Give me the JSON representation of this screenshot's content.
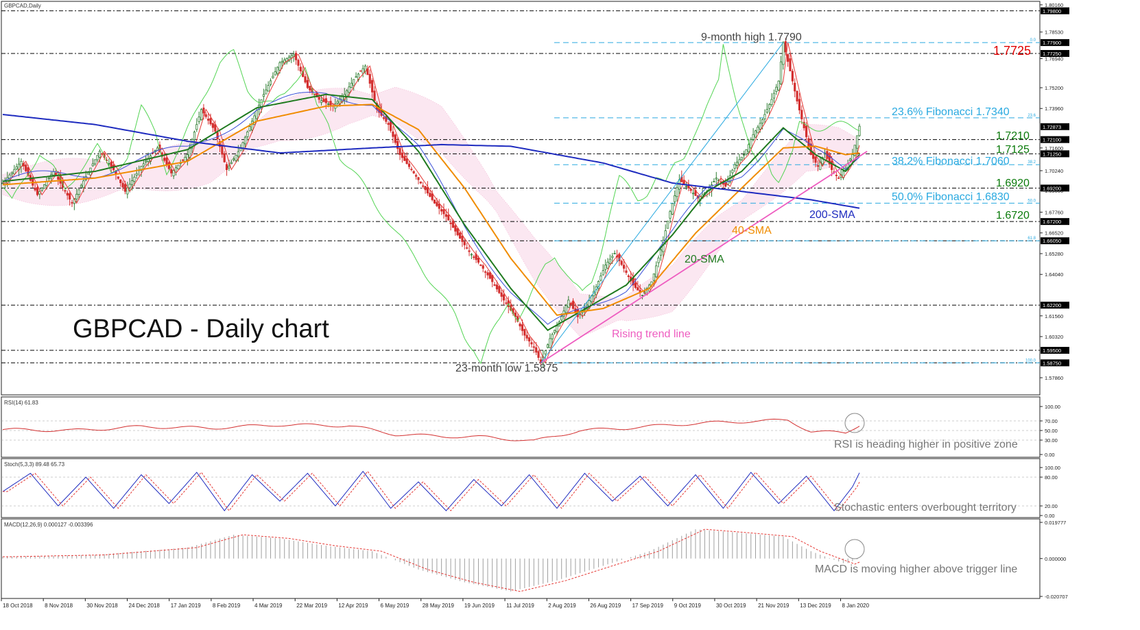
{
  "chart_data": {
    "type": "candlestick",
    "symbol_label": "GBPCAD,Daily",
    "title": "GBPCAD - Daily chart",
    "price_axis": {
      "ylim": [
        1.57,
        1.802
      ],
      "ticks": [
        "1.80160",
        "1.78530",
        "1.76940",
        "1.75200",
        "1.73960",
        "1.71600",
        "1.70240",
        "1.69060",
        "1.67760",
        "1.66520",
        "1.65280",
        "1.64040",
        "1.61560",
        "1.60320",
        "1.57860"
      ],
      "tick_values": [
        1.8016,
        1.7853,
        1.7694,
        1.752,
        1.7396,
        1.716,
        1.7024,
        1.6906,
        1.6776,
        1.6652,
        1.6528,
        1.6404,
        1.6156,
        1.6032,
        1.5786
      ],
      "labels": [
        {
          "text": "1.79800",
          "value": 1.798
        },
        {
          "text": "1.77900",
          "value": 1.779
        },
        {
          "text": "1.77250",
          "value": 1.7725
        },
        {
          "text": "1.72873",
          "value": 1.72873
        },
        {
          "text": "1.72100",
          "value": 1.721
        },
        {
          "text": "1.71250",
          "value": 1.7125
        },
        {
          "text": "1.69200",
          "value": 1.692
        },
        {
          "text": "1.67200",
          "value": 1.672
        },
        {
          "text": "1.66050",
          "value": 1.6605
        },
        {
          "text": "1.62200",
          "value": 1.622
        },
        {
          "text": "1.59500",
          "value": 1.595
        },
        {
          "text": "1.58750",
          "value": 1.5875
        }
      ]
    },
    "x_axis_labels": [
      "18 Oct 2018",
      "8 Nov 2018",
      "30 Nov 2018",
      "24 Dec 2018",
      "17 Jan 2019",
      "8 Feb 2019",
      "4 Mar 2019",
      "22 Mar 2019",
      "12 Apr 2019",
      "6 May 2019",
      "28 May 2019",
      "19 Jun 2019",
      "11 Jul 2019",
      "2 Aug 2019",
      "26 Aug 2019",
      "17 Sep 2019",
      "9 Oct 2019",
      "30 Oct 2019",
      "21 Nov 2019",
      "13 Dec 2019",
      "8 Jan 2020"
    ],
    "horizontal_levels": [
      1.798,
      1.7725,
      1.721,
      1.7125,
      1.692,
      1.672,
      1.6605,
      1.622,
      1.595,
      1.5875
    ],
    "fibonacci": [
      {
        "ratio": "0.0",
        "value": 1.779
      },
      {
        "ratio": "23.6",
        "value": 1.734
      },
      {
        "ratio": "38.2",
        "value": 1.706
      },
      {
        "ratio": "50.0",
        "value": 1.683
      },
      {
        "ratio": "61.8",
        "value": 1.6605
      },
      {
        "ratio": "100.0",
        "value": 1.5875
      }
    ],
    "annotations": {
      "high": "9-month high 1.7790",
      "low": "23-month low 1.5875",
      "lvl_1_7725": "1.7725",
      "fib_236": "23.6% Fibonacci 1.7340",
      "lvl_1_7210": "1.7210",
      "lvl_1_7125": "1.7125",
      "fib_382": "38.2% Fibonacci 1.7060",
      "lvl_1_6920": "1.6920",
      "fib_500": "50.0% Fibonacci 1.6830",
      "sma200": "200-SMA",
      "lvl_1_6720": "1.6720",
      "sma40": "40-SMA",
      "sma20": "20-SMA",
      "trend": "Rising trend line"
    },
    "fib_ratio_labels": [
      "0.0",
      "23.6",
      "38.2",
      "50.0",
      "61.8",
      "100.0"
    ],
    "price_path": [
      [
        0,
        1.695
      ],
      [
        8,
        1.708
      ],
      [
        15,
        1.688
      ],
      [
        22,
        1.702
      ],
      [
        30,
        1.683
      ],
      [
        36,
        1.699
      ],
      [
        42,
        1.714
      ],
      [
        48,
        1.703
      ],
      [
        53,
        1.69
      ],
      [
        60,
        1.705
      ],
      [
        67,
        1.716
      ],
      [
        73,
        1.701
      ],
      [
        80,
        1.712
      ],
      [
        86,
        1.739
      ],
      [
        92,
        1.726
      ],
      [
        97,
        1.703
      ],
      [
        103,
        1.716
      ],
      [
        108,
        1.732
      ],
      [
        113,
        1.748
      ],
      [
        120,
        1.767
      ],
      [
        126,
        1.772
      ],
      [
        132,
        1.752
      ],
      [
        137,
        1.745
      ],
      [
        143,
        1.741
      ],
      [
        148,
        1.748
      ],
      [
        152,
        1.757
      ],
      [
        157,
        1.765
      ],
      [
        162,
        1.739
      ],
      [
        167,
        1.73
      ],
      [
        172,
        1.712
      ],
      [
        177,
        1.703
      ],
      [
        182,
        1.693
      ],
      [
        187,
        1.683
      ],
      [
        192,
        1.675
      ],
      [
        197,
        1.664
      ],
      [
        202,
        1.654
      ],
      [
        207,
        1.646
      ],
      [
        212,
        1.636
      ],
      [
        217,
        1.625
      ],
      [
        222,
        1.615
      ],
      [
        226,
        1.604
      ],
      [
        230,
        1.597
      ],
      [
        233,
        1.5875
      ],
      [
        237,
        1.602
      ],
      [
        241,
        1.612
      ],
      [
        245,
        1.625
      ],
      [
        249,
        1.615
      ],
      [
        253,
        1.622
      ],
      [
        257,
        1.633
      ],
      [
        261,
        1.646
      ],
      [
        265,
        1.653
      ],
      [
        269,
        1.644
      ],
      [
        273,
        1.634
      ],
      [
        277,
        1.628
      ],
      [
        281,
        1.636
      ],
      [
        285,
        1.655
      ],
      [
        289,
        1.678
      ],
      [
        293,
        1.697
      ],
      [
        297,
        1.692
      ],
      [
        301,
        1.686
      ],
      [
        305,
        1.69
      ],
      [
        309,
        1.698
      ],
      [
        313,
        1.693
      ],
      [
        317,
        1.706
      ],
      [
        321,
        1.712
      ],
      [
        325,
        1.724
      ],
      [
        329,
        1.733
      ],
      [
        333,
        1.745
      ],
      [
        336,
        1.756
      ],
      [
        338,
        1.779
      ],
      [
        341,
        1.762
      ],
      [
        344,
        1.744
      ],
      [
        347,
        1.728
      ],
      [
        350,
        1.712
      ],
      [
        353,
        1.705
      ],
      [
        356,
        1.713
      ],
      [
        359,
        1.703
      ],
      [
        362,
        1.698
      ],
      [
        365,
        1.704
      ],
      [
        368,
        1.712
      ],
      [
        371,
        1.729
      ]
    ],
    "sma20_path": [
      [
        0,
        1.696
      ],
      [
        40,
        1.702
      ],
      [
        80,
        1.715
      ],
      [
        110,
        1.74
      ],
      [
        140,
        1.748
      ],
      [
        160,
        1.745
      ],
      [
        180,
        1.714
      ],
      [
        200,
        1.67
      ],
      [
        220,
        1.632
      ],
      [
        236,
        1.607
      ],
      [
        250,
        1.618
      ],
      [
        270,
        1.634
      ],
      [
        290,
        1.664
      ],
      [
        305,
        1.69
      ],
      [
        320,
        1.702
      ],
      [
        338,
        1.728
      ],
      [
        352,
        1.712
      ],
      [
        365,
        1.702
      ],
      [
        371,
        1.712
      ]
    ],
    "sma40_path": [
      [
        0,
        1.694
      ],
      [
        40,
        1.698
      ],
      [
        80,
        1.708
      ],
      [
        110,
        1.732
      ],
      [
        140,
        1.741
      ],
      [
        160,
        1.742
      ],
      [
        180,
        1.727
      ],
      [
        200,
        1.692
      ],
      [
        220,
        1.65
      ],
      [
        240,
        1.616
      ],
      [
        260,
        1.62
      ],
      [
        280,
        1.632
      ],
      [
        300,
        1.665
      ],
      [
        320,
        1.692
      ],
      [
        338,
        1.716
      ],
      [
        352,
        1.717
      ],
      [
        365,
        1.712
      ],
      [
        371,
        1.713
      ]
    ],
    "sma200_path": [
      [
        0,
        1.736
      ],
      [
        40,
        1.73
      ],
      [
        80,
        1.72
      ],
      [
        120,
        1.713
      ],
      [
        160,
        1.716
      ],
      [
        190,
        1.718
      ],
      [
        220,
        1.717
      ],
      [
        260,
        1.707
      ],
      [
        290,
        1.695
      ],
      [
        320,
        1.69
      ],
      [
        350,
        1.685
      ],
      [
        371,
        1.68
      ]
    ],
    "trendline": [
      [
        233,
        1.5875
      ],
      [
        390,
        1.728
      ]
    ],
    "fib_swing": [
      [
        233,
        1.5875
      ],
      [
        338,
        1.779
      ]
    ],
    "indicators": [
      {
        "name": "RSI",
        "label": "RSI(14) 61.83",
        "ticks": [
          "100.00",
          "70.00",
          "50.00",
          "30.00",
          "0.00"
        ],
        "tick_values": [
          100,
          70,
          50,
          30,
          0
        ],
        "note": "RSI is heading higher in positive zone",
        "path": [
          [
            0,
            52
          ],
          [
            30,
            50
          ],
          [
            60,
            58
          ],
          [
            90,
            55
          ],
          [
            120,
            62
          ],
          [
            150,
            60
          ],
          [
            170,
            42
          ],
          [
            190,
            38
          ],
          [
            210,
            36
          ],
          [
            230,
            28
          ],
          [
            250,
            50
          ],
          [
            270,
            55
          ],
          [
            290,
            62
          ],
          [
            310,
            67
          ],
          [
            330,
            70
          ],
          [
            340,
            72
          ],
          [
            350,
            48
          ],
          [
            365,
            45
          ],
          [
            371,
            62
          ]
        ]
      },
      {
        "name": "Stoch",
        "label": "Stoch(5,3,3) 89.48 65.73",
        "ticks": [
          "100.00",
          "80.00",
          "20.00",
          "0.00"
        ],
        "tick_values": [
          100,
          80,
          20,
          0
        ],
        "note": "Stochastic enters overbought territory",
        "path": [
          [
            0,
            50
          ],
          [
            12,
            88
          ],
          [
            24,
            20
          ],
          [
            36,
            80
          ],
          [
            48,
            15
          ],
          [
            60,
            85
          ],
          [
            72,
            25
          ],
          [
            84,
            90
          ],
          [
            96,
            10
          ],
          [
            108,
            85
          ],
          [
            120,
            30
          ],
          [
            132,
            88
          ],
          [
            144,
            20
          ],
          [
            156,
            92
          ],
          [
            168,
            15
          ],
          [
            180,
            70
          ],
          [
            192,
            10
          ],
          [
            204,
            75
          ],
          [
            216,
            20
          ],
          [
            228,
            85
          ],
          [
            240,
            15
          ],
          [
            252,
            88
          ],
          [
            264,
            30
          ],
          [
            276,
            82
          ],
          [
            288,
            20
          ],
          [
            300,
            85
          ],
          [
            312,
            15
          ],
          [
            324,
            90
          ],
          [
            336,
            25
          ],
          [
            348,
            82
          ],
          [
            360,
            10
          ],
          [
            368,
            60
          ],
          [
            371,
            89
          ]
        ]
      },
      {
        "name": "MACD",
        "label": "MACD(12,26,9) 0.000127 -0.003396",
        "ticks": [
          "0.019777",
          "0.000000",
          "-0.020707"
        ],
        "tick_values": [
          0.019777,
          0,
          -0.020707
        ],
        "note": "MACD is moving higher above trigger line",
        "path": [
          [
            0,
            0.001
          ],
          [
            40,
            0.002
          ],
          [
            80,
            0.006
          ],
          [
            100,
            0.013
          ],
          [
            120,
            0.011
          ],
          [
            140,
            0.007
          ],
          [
            160,
            0.004
          ],
          [
            180,
            -0.006
          ],
          [
            200,
            -0.013
          ],
          [
            220,
            -0.018
          ],
          [
            240,
            -0.012
          ],
          [
            260,
            -0.004
          ],
          [
            280,
            0.004
          ],
          [
            300,
            0.016
          ],
          [
            320,
            0.014
          ],
          [
            338,
            0.012
          ],
          [
            350,
            0.004
          ],
          [
            365,
            -0.003
          ],
          [
            371,
            0.000127
          ]
        ]
      }
    ]
  },
  "colors": {
    "bull": "#2e7d32",
    "bear": "#d32f2f",
    "sma20": "#1f7a1f",
    "sma40": "#f08c00",
    "sma200": "#1e2bbf",
    "fib": "#29a9e0",
    "trend": "#ee5cc0",
    "level": "#000000",
    "red_level": "#e00000",
    "green_level": "#0a7a0a",
    "cloud": "#f1a1c8"
  }
}
